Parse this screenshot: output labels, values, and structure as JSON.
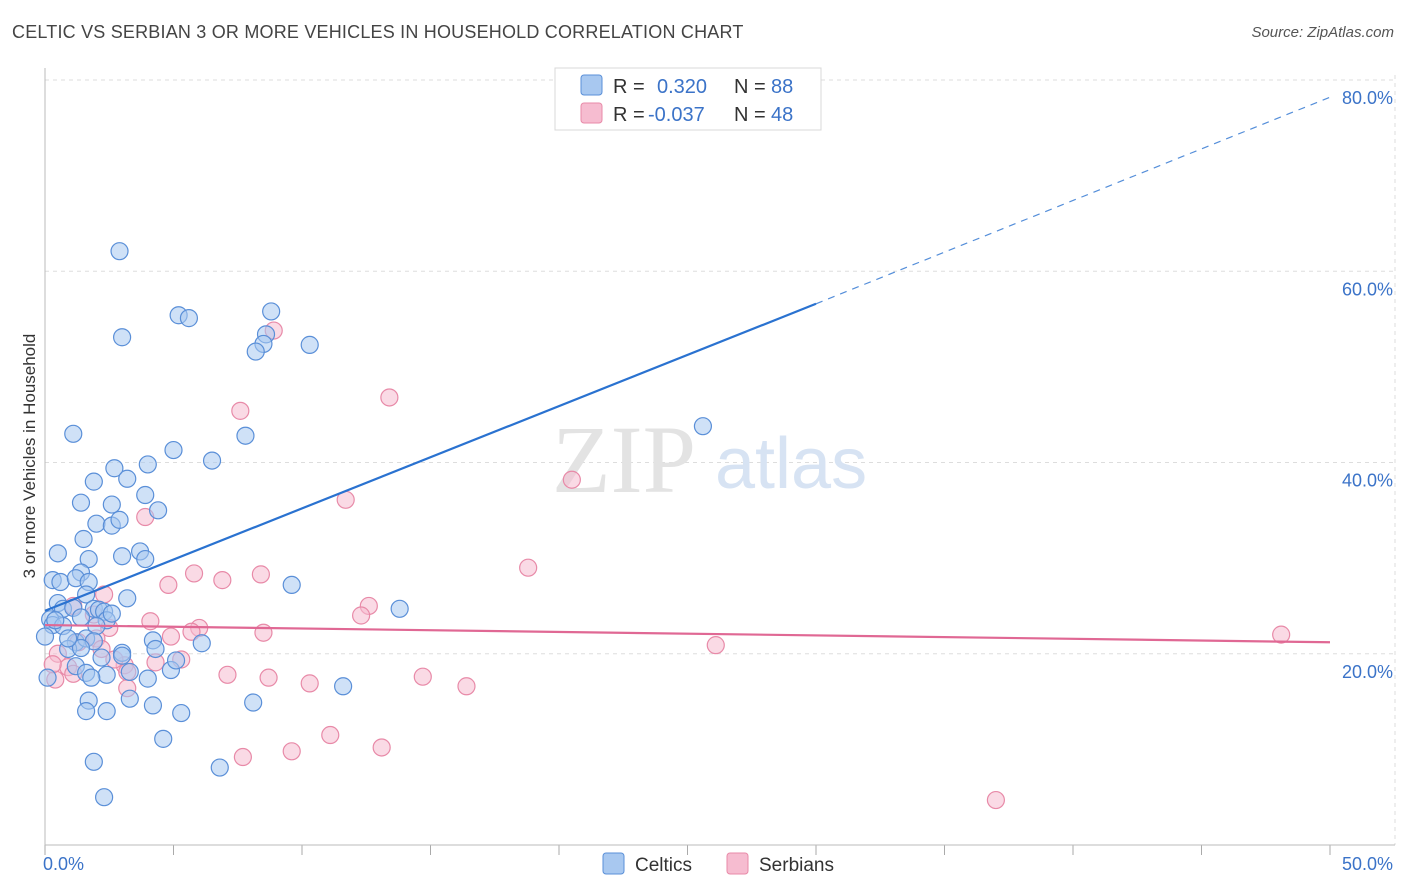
{
  "header": {
    "title": "CELTIC VS SERBIAN 3 OR MORE VEHICLES IN HOUSEHOLD CORRELATION CHART",
    "source": "Source: ZipAtlas.com"
  },
  "watermark": {
    "zip": "ZIP",
    "atlas": "atlas"
  },
  "legend": {
    "rows": [
      {
        "r_label": "R =",
        "r_value": "0.320",
        "n_label": "N =",
        "n_value": "88"
      },
      {
        "r_label": "R =",
        "r_value": "-0.037",
        "n_label": "N =",
        "n_value": "48"
      }
    ]
  },
  "bottom_legend": {
    "series1": "Celtics",
    "series2": "Serbians"
  },
  "colors": {
    "celtics_fill": "#a8c8f0",
    "celtics_stroke": "#5a8fd8",
    "celtics_line": "#2a72d0",
    "serbians_fill": "#f6bcd0",
    "serbians_stroke": "#e88aa8",
    "serbians_line": "#e06894",
    "accent_text": "#3b73c8",
    "grid": "#dddddd"
  },
  "chart_data": {
    "type": "scatter",
    "xlabel": "",
    "ylabel": "3 or more Vehicles in Household",
    "xlim": [
      0,
      50
    ],
    "ylim": [
      0,
      80
    ],
    "x_tick_labels": [
      "0.0%",
      "50.0%"
    ],
    "y_ticks": [
      20,
      40,
      60,
      80
    ],
    "y_tick_labels": [
      "20.0%",
      "40.0%",
      "60.0%",
      "80.0%"
    ],
    "grid": true,
    "legend_position": "top-center",
    "series": [
      {
        "name": "Celtics",
        "trend": {
          "x0": 0,
          "y0": 24.5,
          "x1": 30,
          "y1": 56.6,
          "dashed_to_x": 50,
          "dashed_to_y": 78.2
        },
        "points": [
          [
            2.9,
            62.1
          ],
          [
            3.0,
            53.1
          ],
          [
            5.2,
            55.4
          ],
          [
            5.6,
            55.1
          ],
          [
            8.8,
            55.8
          ],
          [
            8.6,
            53.4
          ],
          [
            8.5,
            52.4
          ],
          [
            8.2,
            51.6
          ],
          [
            10.3,
            52.3
          ],
          [
            25.6,
            43.8
          ],
          [
            1.1,
            43.0
          ],
          [
            5.0,
            41.3
          ],
          [
            6.5,
            40.2
          ],
          [
            7.8,
            42.8
          ],
          [
            2.7,
            39.4
          ],
          [
            4.0,
            39.8
          ],
          [
            1.9,
            38.0
          ],
          [
            3.2,
            38.3
          ],
          [
            3.9,
            36.6
          ],
          [
            1.4,
            35.8
          ],
          [
            2.6,
            35.6
          ],
          [
            4.4,
            35.0
          ],
          [
            2.0,
            33.6
          ],
          [
            2.6,
            33.4
          ],
          [
            2.9,
            34.0
          ],
          [
            1.5,
            32.0
          ],
          [
            3.7,
            30.7
          ],
          [
            3.0,
            30.2
          ],
          [
            3.9,
            29.9
          ],
          [
            0.5,
            30.5
          ],
          [
            1.7,
            29.9
          ],
          [
            1.4,
            28.5
          ],
          [
            0.3,
            27.7
          ],
          [
            0.6,
            27.5
          ],
          [
            1.2,
            27.9
          ],
          [
            1.7,
            27.5
          ],
          [
            9.6,
            27.2
          ],
          [
            1.6,
            26.2
          ],
          [
            0.5,
            25.3
          ],
          [
            0.7,
            24.7
          ],
          [
            1.1,
            24.8
          ],
          [
            1.9,
            24.7
          ],
          [
            2.1,
            24.6
          ],
          [
            2.3,
            24.4
          ],
          [
            3.2,
            25.8
          ],
          [
            13.8,
            24.7
          ],
          [
            0.2,
            23.6
          ],
          [
            0.3,
            23.0
          ],
          [
            0.7,
            22.9
          ],
          [
            2.4,
            23.5
          ],
          [
            2.0,
            22.9
          ],
          [
            0.0,
            21.8
          ],
          [
            1.2,
            21.2
          ],
          [
            1.6,
            21.6
          ],
          [
            1.9,
            21.3
          ],
          [
            4.2,
            21.4
          ],
          [
            0.9,
            20.5
          ],
          [
            1.4,
            20.6
          ],
          [
            3.0,
            20.1
          ],
          [
            3.0,
            19.8
          ],
          [
            4.3,
            20.5
          ],
          [
            0.1,
            17.5
          ],
          [
            1.2,
            18.7
          ],
          [
            1.6,
            18.0
          ],
          [
            2.4,
            17.8
          ],
          [
            4.0,
            17.4
          ],
          [
            4.9,
            18.3
          ],
          [
            5.1,
            19.3
          ],
          [
            1.8,
            17.5
          ],
          [
            11.6,
            16.6
          ],
          [
            1.7,
            15.1
          ],
          [
            3.3,
            15.3
          ],
          [
            4.2,
            14.6
          ],
          [
            8.1,
            14.9
          ],
          [
            1.6,
            14.0
          ],
          [
            2.4,
            14.0
          ],
          [
            5.3,
            13.8
          ],
          [
            4.6,
            11.1
          ],
          [
            1.9,
            8.7
          ],
          [
            6.8,
            8.1
          ],
          [
            2.3,
            5.0
          ],
          [
            0.4,
            23.5
          ],
          [
            2.6,
            24.2
          ],
          [
            0.9,
            21.6
          ],
          [
            2.2,
            19.6
          ],
          [
            3.3,
            18.1
          ],
          [
            6.1,
            21.1
          ],
          [
            1.4,
            23.8
          ]
        ]
      },
      {
        "name": "Serbians",
        "trend": {
          "x0": 0,
          "y0": 23.0,
          "x1": 50,
          "y1": 21.2
        },
        "points": [
          [
            8.9,
            53.8
          ],
          [
            13.4,
            46.8
          ],
          [
            7.6,
            45.4
          ],
          [
            20.5,
            38.2
          ],
          [
            11.7,
            36.1
          ],
          [
            3.9,
            34.3
          ],
          [
            18.8,
            29.0
          ],
          [
            5.8,
            28.4
          ],
          [
            4.8,
            27.2
          ],
          [
            6.9,
            27.7
          ],
          [
            8.4,
            28.3
          ],
          [
            12.6,
            25.0
          ],
          [
            12.3,
            24.0
          ],
          [
            2.3,
            26.2
          ],
          [
            1.1,
            25.0
          ],
          [
            4.1,
            23.4
          ],
          [
            6.0,
            22.7
          ],
          [
            2.5,
            22.7
          ],
          [
            8.5,
            22.2
          ],
          [
            4.9,
            21.8
          ],
          [
            5.7,
            22.3
          ],
          [
            2.0,
            21.6
          ],
          [
            1.3,
            21.2
          ],
          [
            48.1,
            22.0
          ],
          [
            26.1,
            20.9
          ],
          [
            2.2,
            20.5
          ],
          [
            0.5,
            20.0
          ],
          [
            4.3,
            19.1
          ],
          [
            5.3,
            19.4
          ],
          [
            3.1,
            18.8
          ],
          [
            3.2,
            18.1
          ],
          [
            0.9,
            18.6
          ],
          [
            1.1,
            17.9
          ],
          [
            0.4,
            17.3
          ],
          [
            7.1,
            17.8
          ],
          [
            8.7,
            17.5
          ],
          [
            10.3,
            16.9
          ],
          [
            14.7,
            17.6
          ],
          [
            16.4,
            16.6
          ],
          [
            3.2,
            16.4
          ],
          [
            0.3,
            18.9
          ],
          [
            11.1,
            11.5
          ],
          [
            13.1,
            10.2
          ],
          [
            9.6,
            9.8
          ],
          [
            7.7,
            9.2
          ],
          [
            37.0,
            4.7
          ],
          [
            2.7,
            19.4
          ],
          [
            1.9,
            24.1
          ]
        ]
      }
    ]
  }
}
